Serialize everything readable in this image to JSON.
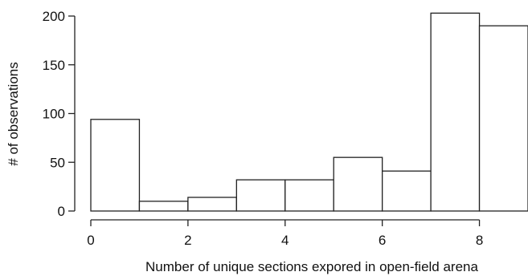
{
  "chart_data": {
    "type": "bar",
    "subtype": "histogram",
    "title": "",
    "xlabel": "Number of unique sections expored in open-field arena",
    "ylabel": "# of observations",
    "xlim": [
      0,
      9
    ],
    "ylim": [
      0,
      200
    ],
    "x_ticks": [
      0,
      2,
      4,
      6,
      8
    ],
    "y_ticks": [
      0,
      50,
      100,
      150,
      200
    ],
    "grid": false,
    "bins": [
      {
        "start": 0,
        "end": 1,
        "value": 94
      },
      {
        "start": 1,
        "end": 2,
        "value": 10
      },
      {
        "start": 2,
        "end": 3,
        "value": 14
      },
      {
        "start": 3,
        "end": 4,
        "value": 32
      },
      {
        "start": 4,
        "end": 5,
        "value": 32
      },
      {
        "start": 5,
        "end": 6,
        "value": 55
      },
      {
        "start": 6,
        "end": 7,
        "value": 41
      },
      {
        "start": 7,
        "end": 8,
        "value": 203
      },
      {
        "start": 8,
        "end": 9,
        "value": 190
      }
    ]
  }
}
